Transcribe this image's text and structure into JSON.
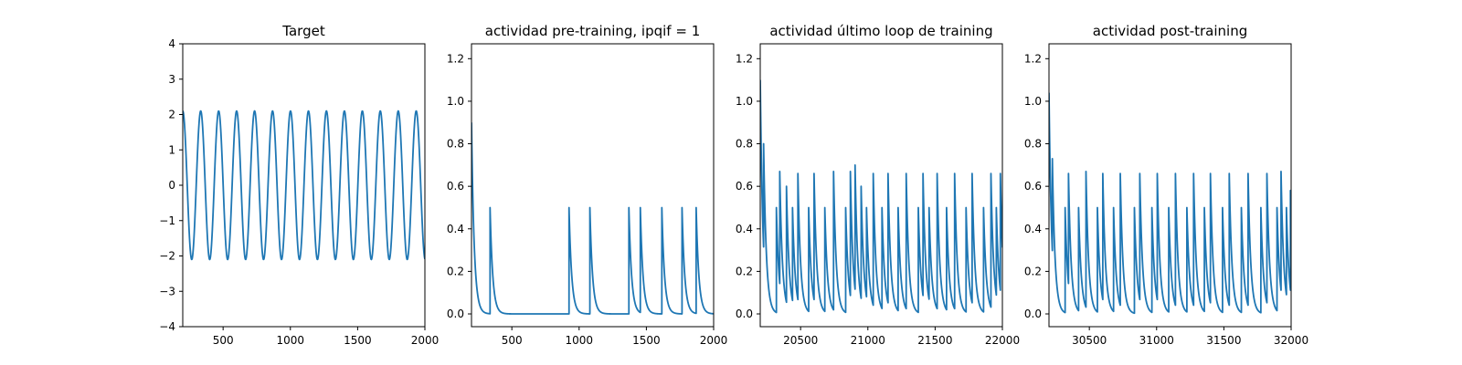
{
  "colors": {
    "series": "#1f77b4",
    "axes": "#000000",
    "background": "#ffffff"
  },
  "chart_data": [
    {
      "type": "line",
      "title": "Target",
      "xlabel": "",
      "ylabel": "",
      "xlim": [
        200,
        2000
      ],
      "ylim": [
        -4,
        4
      ],
      "xticks": [
        500,
        1000,
        1500,
        2000
      ],
      "yticks": [
        -4,
        -3,
        -2,
        -1,
        0,
        1,
        2,
        3,
        4
      ],
      "ytick_decimals": 0,
      "grid": false,
      "legend": "none",
      "series": [
        {
          "kind": "sine",
          "amplitude": 2.1,
          "period": 133.5,
          "x_start": 200,
          "x_end": 2000,
          "y_start": 2.1,
          "y_end": -2.0
        }
      ]
    },
    {
      "type": "line",
      "title": "actividad pre-training, ipqif = 1",
      "xlabel": "",
      "ylabel": "",
      "xlim": [
        200,
        2000
      ],
      "ylim": [
        -0.06,
        1.27
      ],
      "xticks": [
        500,
        1000,
        1500,
        2000
      ],
      "yticks": [
        0.0,
        0.2,
        0.4,
        0.6,
        0.8,
        1.0,
        1.2
      ],
      "ytick_decimals": 1,
      "grid": false,
      "legend": "none",
      "series": [
        {
          "kind": "spikes",
          "x_start": 200,
          "x_end": 2000,
          "y_start": 0.9,
          "decay": 20,
          "spikes": [
            [
              338,
              0.5
            ],
            [
              925,
              0.5
            ],
            [
              1080,
              0.5
            ],
            [
              1370,
              0.5
            ],
            [
              1455,
              0.5
            ],
            [
              1615,
              0.5
            ],
            [
              1765,
              0.5
            ],
            [
              1870,
              0.5
            ]
          ]
        }
      ]
    },
    {
      "type": "line",
      "title": "actividad último loop de training",
      "xlabel": "",
      "ylabel": "",
      "xlim": [
        20200,
        22000
      ],
      "ylim": [
        -0.06,
        1.27
      ],
      "xticks": [
        20500,
        21000,
        21500,
        22000
      ],
      "yticks": [
        0.0,
        0.2,
        0.4,
        0.6,
        0.8,
        1.0,
        1.2
      ],
      "ytick_decimals": 1,
      "grid": false,
      "legend": "none",
      "series": [
        {
          "kind": "spikes",
          "x_start": 20200,
          "x_end": 22000,
          "y_start": 1.1,
          "decay": 20,
          "spikes": [
            [
              20225,
              0.8
            ],
            [
              20320,
              0.5
            ],
            [
              20345,
              0.67
            ],
            [
              20395,
              0.6
            ],
            [
              20440,
              0.5
            ],
            [
              20480,
              0.66
            ],
            [
              20560,
              0.5
            ],
            [
              20600,
              0.66
            ],
            [
              20680,
              0.5
            ],
            [
              20745,
              0.67
            ],
            [
              20835,
              0.5
            ],
            [
              20870,
              0.67
            ],
            [
              20905,
              0.7
            ],
            [
              20950,
              0.6
            ],
            [
              20990,
              0.5
            ],
            [
              21040,
              0.66
            ],
            [
              21105,
              0.5
            ],
            [
              21150,
              0.66
            ],
            [
              21225,
              0.5
            ],
            [
              21285,
              0.66
            ],
            [
              21375,
              0.5
            ],
            [
              21410,
              0.66
            ],
            [
              21455,
              0.5
            ],
            [
              21515,
              0.66
            ],
            [
              21585,
              0.5
            ],
            [
              21645,
              0.66
            ],
            [
              21730,
              0.5
            ],
            [
              21775,
              0.66
            ],
            [
              21860,
              0.5
            ],
            [
              21915,
              0.66
            ],
            [
              21955,
              0.5
            ],
            [
              21985,
              0.66
            ]
          ]
        }
      ]
    },
    {
      "type": "line",
      "title": "actividad post-training",
      "xlabel": "",
      "ylabel": "",
      "xlim": [
        30200,
        32000
      ],
      "ylim": [
        -0.06,
        1.27
      ],
      "xticks": [
        30500,
        31000,
        31500,
        32000
      ],
      "yticks": [
        0.0,
        0.2,
        0.4,
        0.6,
        0.8,
        1.0,
        1.2
      ],
      "ytick_decimals": 1,
      "grid": false,
      "legend": "none",
      "series": [
        {
          "kind": "spikes",
          "x_start": 30200,
          "x_end": 32000,
          "y_start": 1.04,
          "decay": 20,
          "spikes": [
            [
              30225,
              0.73
            ],
            [
              30320,
              0.5
            ],
            [
              30345,
              0.66
            ],
            [
              30420,
              0.5
            ],
            [
              30475,
              0.67
            ],
            [
              30560,
              0.5
            ],
            [
              30600,
              0.66
            ],
            [
              30680,
              0.5
            ],
            [
              30730,
              0.66
            ],
            [
              30835,
              0.5
            ],
            [
              30875,
              0.66
            ],
            [
              30965,
              0.5
            ],
            [
              31005,
              0.66
            ],
            [
              31090,
              0.5
            ],
            [
              31140,
              0.66
            ],
            [
              31225,
              0.5
            ],
            [
              31275,
              0.66
            ],
            [
              31355,
              0.5
            ],
            [
              31400,
              0.66
            ],
            [
              31490,
              0.5
            ],
            [
              31540,
              0.66
            ],
            [
              31630,
              0.5
            ],
            [
              31680,
              0.66
            ],
            [
              31775,
              0.5
            ],
            [
              31820,
              0.66
            ],
            [
              31895,
              0.5
            ],
            [
              31925,
              0.67
            ],
            [
              31965,
              0.5
            ],
            [
              31995,
              0.58
            ]
          ]
        }
      ]
    }
  ]
}
